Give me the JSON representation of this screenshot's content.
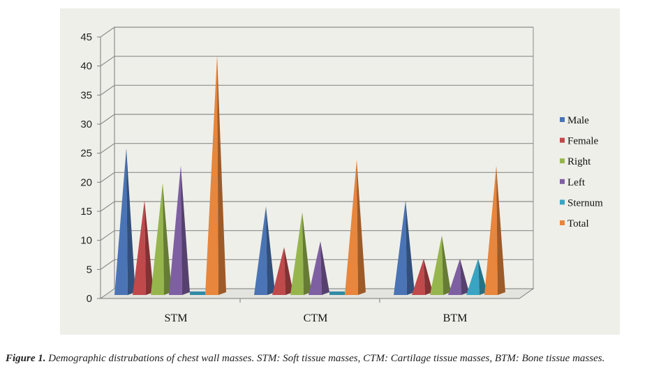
{
  "chart_data": {
    "type": "bar",
    "categories": [
      "STM",
      "CTM",
      "BTM"
    ],
    "series": [
      {
        "name": "Male",
        "values": [
          25,
          15,
          16
        ],
        "color": "#4a74b5"
      },
      {
        "name": "Female",
        "values": [
          16,
          8,
          6
        ],
        "color": "#c0494c"
      },
      {
        "name": "Right",
        "values": [
          19,
          14,
          10
        ],
        "color": "#96b64d"
      },
      {
        "name": "Left",
        "values": [
          22,
          9,
          6
        ],
        "color": "#7e5fa2"
      },
      {
        "name": "Sternum",
        "values": [
          0,
          0,
          6
        ],
        "color": "#3aa4c3"
      },
      {
        "name": "Total",
        "values": [
          41,
          23,
          22
        ],
        "color": "#e7863c"
      }
    ],
    "y_ticks": [
      "0",
      "5",
      "10",
      "15",
      "20",
      "25",
      "30",
      "35",
      "40",
      "45"
    ],
    "ylim": [
      0,
      45
    ],
    "grid": true,
    "legend_position": "right",
    "bar_style": "3d-pyramid"
  },
  "caption": {
    "label": "Figure 1.",
    "text": " Demographic distrubations of chest wall masses. STM: Soft tissue masses, CTM: Cartilage tissue masses, BTM: Bone tissue masses."
  }
}
